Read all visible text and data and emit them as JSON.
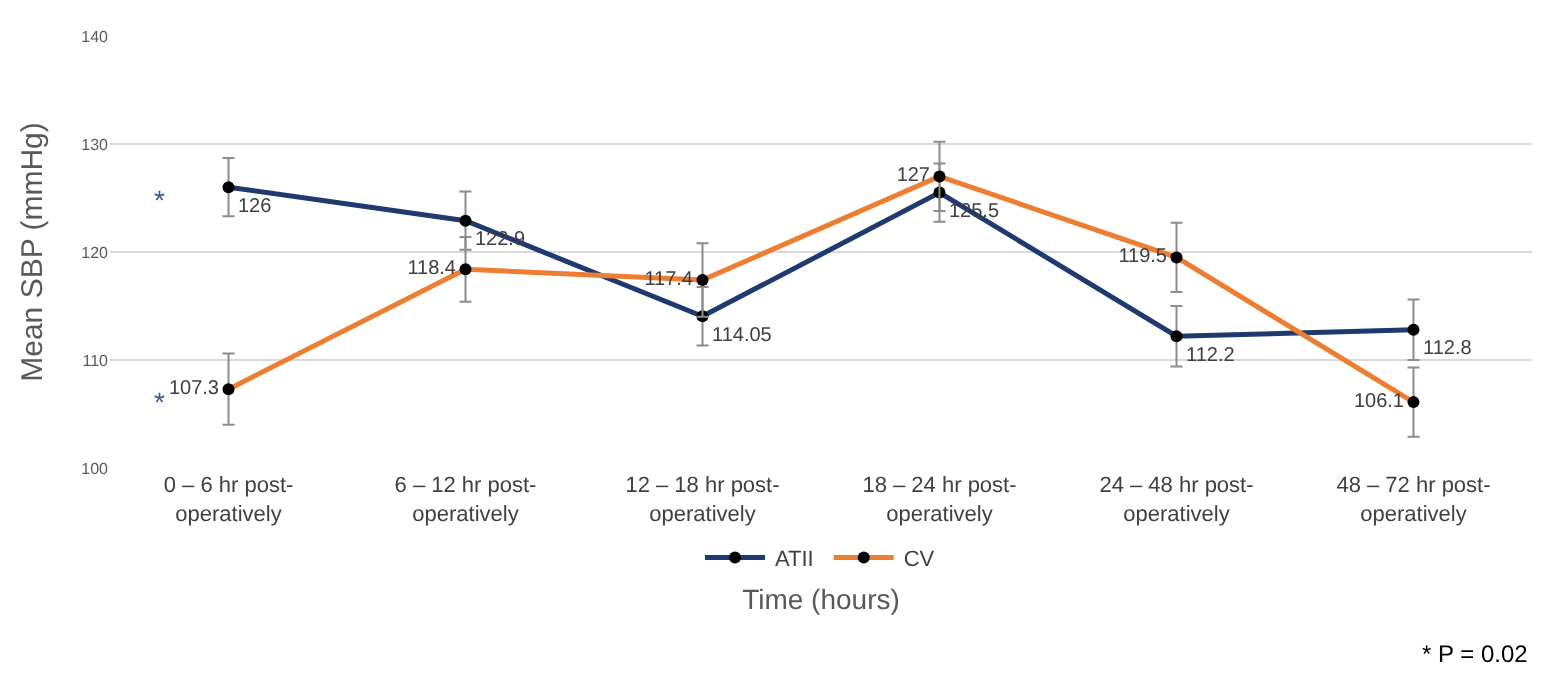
{
  "chart_data": {
    "type": "line",
    "xlabel": "Time (hours)",
    "ylabel": "Mean SBP (mmHg)",
    "categories": [
      "0 – 6 hr post-\noperatively",
      "6 – 12 hr post-\noperatively",
      "12 – 18 hr post-\noperatively",
      "18 – 24 hr post-\noperatively",
      "24 – 48 hr post-\noperatively",
      "48 – 72 hr post-\noperatively"
    ],
    "series": [
      {
        "name": "ATII",
        "color": "#1f3a6e",
        "values": [
          126,
          122.9,
          114.05,
          125.5,
          112.2,
          112.8
        ],
        "errors": [
          2.7,
          2.7,
          2.7,
          2.7,
          2.8,
          2.8
        ],
        "value_labels": [
          "126",
          "122.9",
          "114.05",
          "125.5",
          "112.2",
          "112.8"
        ]
      },
      {
        "name": "CV",
        "color": "#ed7d31",
        "values": [
          107.3,
          118.4,
          117.4,
          127,
          119.5,
          106.1
        ],
        "errors": [
          3.3,
          3.0,
          3.4,
          3.2,
          3.2,
          3.2
        ],
        "value_labels": [
          "107.3",
          "118.4",
          "117.4",
          "127",
          "119.5",
          "106.1"
        ]
      }
    ],
    "ylim": [
      100,
      140
    ],
    "yticks": [
      100,
      110,
      120,
      130,
      140
    ],
    "grid": "y",
    "legend": "bottom",
    "marker": "circle",
    "line_style": "solid",
    "annotations": [
      {
        "text": "*",
        "x": "0 – 6 hr post-\noperatively",
        "y": 126
      },
      {
        "text": "*",
        "x": "0 – 6 hr post-\noperatively",
        "y": 107.3
      },
      "* P = 0.02"
    ]
  }
}
